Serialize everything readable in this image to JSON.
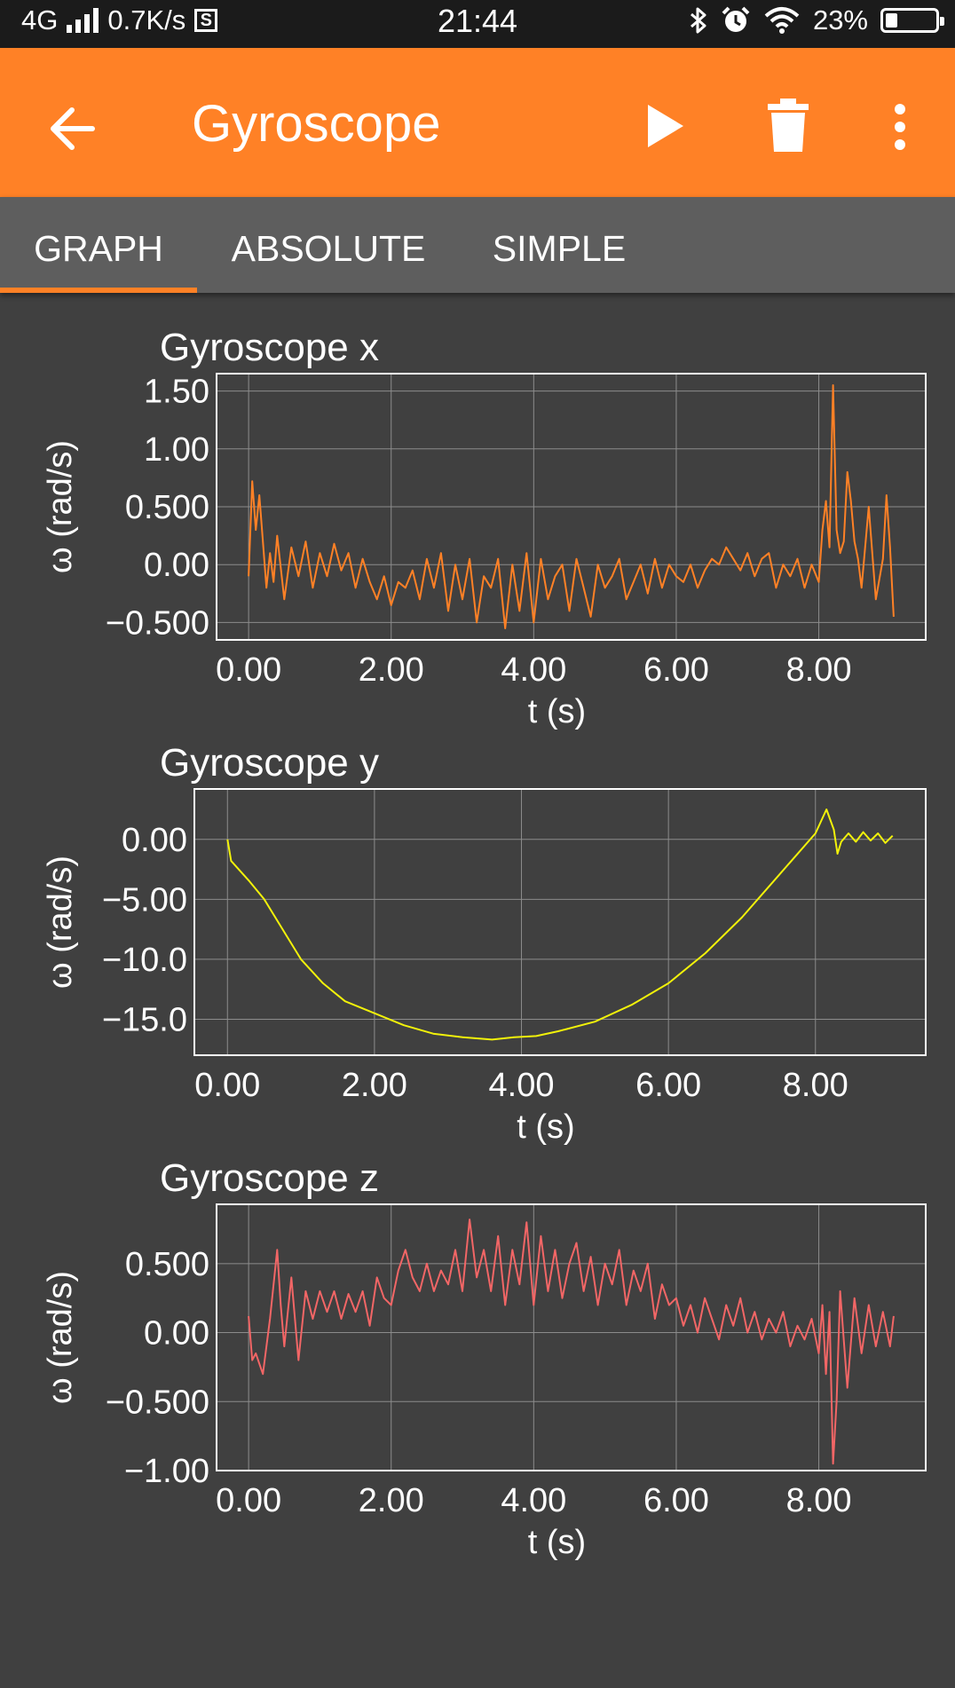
{
  "status_bar": {
    "network": "4G",
    "speed": "0.7K/s",
    "sim_icon": "S",
    "time": "21:44",
    "icons": [
      "bluetooth-icon",
      "alarm-icon",
      "wifi-icon"
    ],
    "battery": "23%",
    "battery_level": 0.23
  },
  "app_bar": {
    "title": "Gyroscope",
    "icons": [
      "arrow-back-icon",
      "play-icon",
      "trash-icon",
      "more-vert-icon"
    ]
  },
  "tabs": [
    {
      "label": "GRAPH",
      "active": true
    },
    {
      "label": "ABSOLUTE",
      "active": false
    },
    {
      "label": "SIMPLE",
      "active": false
    }
  ],
  "colors": {
    "accent": "#ff8126",
    "series_x": "#ff8126",
    "series_y": "#f2f20a",
    "series_z": "#f26666"
  },
  "chart_data": [
    {
      "type": "line",
      "title": "Gyroscope x",
      "xlabel": "t (s)",
      "ylabel": "ω (rad/s)",
      "xlim": [
        -0.45,
        9.5
      ],
      "ylim": [
        -0.65,
        1.65
      ],
      "xticks": [
        "0.00",
        "2.00",
        "4.00",
        "6.00",
        "8.00"
      ],
      "xtick_values": [
        0,
        2,
        4,
        6,
        8
      ],
      "yticks": [
        "1.50",
        "1.00",
        "0.500",
        "0.00",
        "-0.500"
      ],
      "ytick_values": [
        1.5,
        1.0,
        0.5,
        0.0,
        -0.5
      ],
      "grid": true,
      "series": [
        {
          "color": "#ff8126",
          "x": [
            0,
            0.05,
            0.1,
            0.15,
            0.2,
            0.25,
            0.3,
            0.35,
            0.4,
            0.5,
            0.6,
            0.7,
            0.8,
            0.9,
            1.0,
            1.1,
            1.2,
            1.3,
            1.4,
            1.5,
            1.6,
            1.7,
            1.8,
            1.9,
            2.0,
            2.1,
            2.2,
            2.3,
            2.4,
            2.5,
            2.6,
            2.7,
            2.8,
            2.9,
            3.0,
            3.1,
            3.2,
            3.3,
            3.4,
            3.5,
            3.6,
            3.7,
            3.8,
            3.9,
            4.0,
            4.1,
            4.2,
            4.3,
            4.4,
            4.5,
            4.6,
            4.7,
            4.8,
            4.9,
            5.0,
            5.1,
            5.2,
            5.3,
            5.4,
            5.5,
            5.6,
            5.7,
            5.8,
            5.9,
            6.0,
            6.1,
            6.2,
            6.3,
            6.4,
            6.5,
            6.6,
            6.7,
            6.8,
            6.9,
            7.0,
            7.1,
            7.2,
            7.3,
            7.4,
            7.5,
            7.6,
            7.7,
            7.8,
            7.9,
            8.0,
            8.05,
            8.1,
            8.15,
            8.2,
            8.25,
            8.3,
            8.35,
            8.4,
            8.45,
            8.5,
            8.55,
            8.6,
            8.7,
            8.8,
            8.9,
            8.95,
            9.0,
            9.05
          ],
          "y": [
            -0.1,
            0.72,
            0.3,
            0.6,
            0.2,
            -0.2,
            0.1,
            -0.15,
            0.25,
            -0.3,
            0.15,
            -0.1,
            0.2,
            -0.2,
            0.1,
            -0.1,
            0.18,
            -0.05,
            0.1,
            -0.2,
            0.05,
            -0.15,
            -0.3,
            -0.1,
            -0.35,
            -0.15,
            -0.2,
            -0.05,
            -0.3,
            0.05,
            -0.2,
            0.1,
            -0.4,
            0.0,
            -0.3,
            0.05,
            -0.5,
            -0.1,
            -0.2,
            0.05,
            -0.55,
            0.0,
            -0.4,
            0.1,
            -0.5,
            0.05,
            -0.3,
            -0.1,
            0.0,
            -0.4,
            0.05,
            -0.2,
            -0.45,
            0.0,
            -0.2,
            -0.1,
            0.05,
            -0.3,
            -0.15,
            0.0,
            -0.25,
            0.05,
            -0.2,
            0.0,
            -0.1,
            -0.15,
            0.0,
            -0.2,
            -0.05,
            0.05,
            0.0,
            0.15,
            0.05,
            -0.05,
            0.1,
            -0.1,
            0.05,
            0.1,
            -0.2,
            0.0,
            -0.1,
            0.05,
            -0.2,
            0.0,
            -0.15,
            0.3,
            0.55,
            0.15,
            1.55,
            0.3,
            0.1,
            0.2,
            0.8,
            0.55,
            0.2,
            0.05,
            -0.2,
            0.5,
            -0.3,
            0.05,
            0.6,
            0.15,
            -0.45
          ]
        }
      ]
    },
    {
      "type": "line",
      "title": "Gyroscope y",
      "xlabel": "t (s)",
      "ylabel": "ω (rad/s)",
      "xlim": [
        -0.45,
        9.5
      ],
      "ylim": [
        -18.0,
        4.2
      ],
      "xticks": [
        "0.00",
        "2.00",
        "4.00",
        "6.00",
        "8.00"
      ],
      "xtick_values": [
        0,
        2,
        4,
        6,
        8
      ],
      "yticks": [
        "0.00",
        "-5.00",
        "-10.0",
        "-15.0"
      ],
      "ytick_values": [
        0,
        -5,
        -10,
        -15
      ],
      "grid": true,
      "series": [
        {
          "color": "#f2f20a",
          "x": [
            0,
            0.05,
            0.3,
            0.5,
            0.75,
            1.0,
            1.3,
            1.6,
            2.0,
            2.4,
            2.8,
            3.2,
            3.6,
            3.9,
            4.2,
            4.5,
            5.0,
            5.5,
            6.0,
            6.5,
            7.0,
            7.5,
            8.0,
            8.15,
            8.25,
            8.3,
            8.35,
            8.45,
            8.55,
            8.65,
            8.75,
            8.85,
            8.95,
            9.05
          ],
          "y": [
            0,
            -1.8,
            -3.5,
            -5.0,
            -7.5,
            -10.0,
            -12.0,
            -13.5,
            -14.5,
            -15.5,
            -16.2,
            -16.5,
            -16.7,
            -16.5,
            -16.4,
            -16.0,
            -15.2,
            -13.8,
            -12.0,
            -9.5,
            -6.5,
            -3.0,
            0.5,
            2.5,
            0.8,
            -1.2,
            -0.2,
            0.5,
            -0.2,
            0.6,
            -0.1,
            0.5,
            -0.3,
            0.3
          ]
        }
      ]
    },
    {
      "type": "line",
      "title": "Gyroscope z",
      "xlabel": "t (s)",
      "ylabel": "ω (rad/s)",
      "xlim": [
        -0.45,
        9.5
      ],
      "ylim": [
        -1.0,
        0.93
      ],
      "xticks": [
        "0.00",
        "2.00",
        "4.00",
        "6.00",
        "8.00"
      ],
      "xtick_values": [
        0,
        2,
        4,
        6,
        8
      ],
      "yticks": [
        "0.500",
        "0.00",
        "-0.500",
        "-1.00"
      ],
      "ytick_values": [
        0.5,
        0.0,
        -0.5,
        -1.0
      ],
      "grid": true,
      "series": [
        {
          "color": "#f26666",
          "x": [
            0,
            0.05,
            0.1,
            0.2,
            0.3,
            0.4,
            0.45,
            0.5,
            0.6,
            0.7,
            0.8,
            0.9,
            1.0,
            1.1,
            1.2,
            1.3,
            1.4,
            1.5,
            1.6,
            1.7,
            1.8,
            1.9,
            2.0,
            2.1,
            2.2,
            2.3,
            2.4,
            2.5,
            2.6,
            2.7,
            2.8,
            2.9,
            3.0,
            3.1,
            3.2,
            3.3,
            3.4,
            3.5,
            3.6,
            3.7,
            3.8,
            3.9,
            4.0,
            4.1,
            4.2,
            4.3,
            4.4,
            4.5,
            4.6,
            4.7,
            4.8,
            4.9,
            5.0,
            5.1,
            5.2,
            5.3,
            5.4,
            5.5,
            5.6,
            5.7,
            5.8,
            5.9,
            6.0,
            6.1,
            6.2,
            6.3,
            6.4,
            6.5,
            6.6,
            6.7,
            6.8,
            6.9,
            7.0,
            7.1,
            7.2,
            7.3,
            7.4,
            7.5,
            7.6,
            7.7,
            7.8,
            7.9,
            8.0,
            8.05,
            8.1,
            8.15,
            8.2,
            8.25,
            8.3,
            8.4,
            8.5,
            8.6,
            8.7,
            8.8,
            8.9,
            9.0,
            9.05
          ],
          "y": [
            0.12,
            -0.2,
            -0.15,
            -0.3,
            0.1,
            0.6,
            0.2,
            -0.1,
            0.4,
            -0.2,
            0.3,
            0.1,
            0.3,
            0.15,
            0.3,
            0.1,
            0.28,
            0.15,
            0.3,
            0.05,
            0.4,
            0.25,
            0.2,
            0.45,
            0.6,
            0.4,
            0.3,
            0.5,
            0.3,
            0.45,
            0.35,
            0.6,
            0.3,
            0.82,
            0.4,
            0.6,
            0.3,
            0.7,
            0.2,
            0.6,
            0.35,
            0.8,
            0.2,
            0.7,
            0.3,
            0.6,
            0.25,
            0.5,
            0.65,
            0.3,
            0.55,
            0.2,
            0.5,
            0.35,
            0.6,
            0.2,
            0.45,
            0.3,
            0.5,
            0.1,
            0.35,
            0.2,
            0.25,
            0.05,
            0.2,
            0.0,
            0.25,
            0.1,
            -0.05,
            0.2,
            0.05,
            0.25,
            0.0,
            0.15,
            -0.05,
            0.1,
            0.0,
            0.15,
            -0.1,
            0.05,
            -0.05,
            0.1,
            -0.15,
            0.2,
            -0.3,
            0.15,
            -0.95,
            -0.5,
            0.3,
            -0.4,
            0.25,
            -0.15,
            0.2,
            -0.1,
            0.15,
            -0.1,
            0.12
          ]
        }
      ]
    }
  ]
}
